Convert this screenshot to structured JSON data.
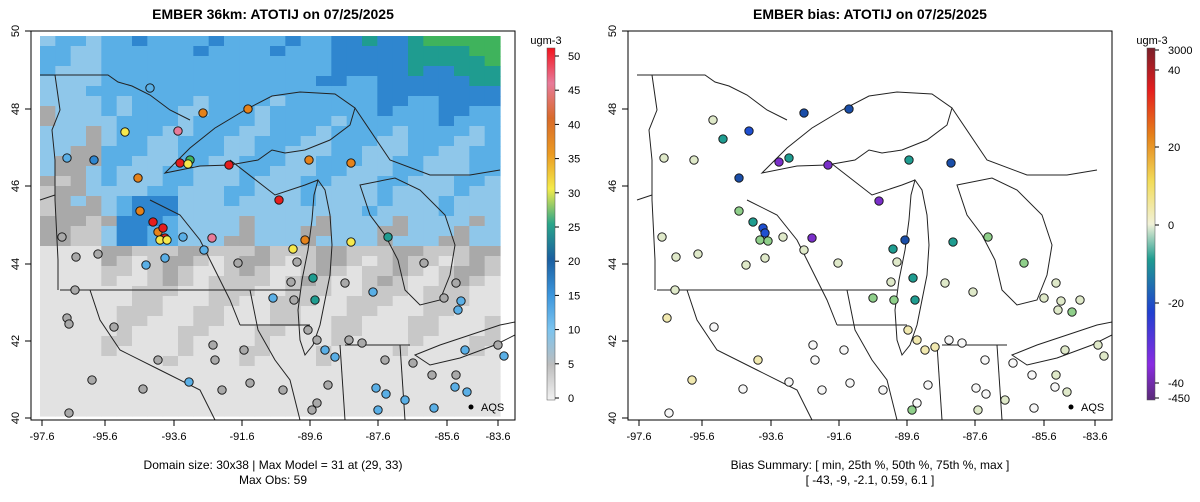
{
  "colors": {
    "gray_dark": "#a9a9a9",
    "gray_mid": "#c8c8c8",
    "gray_light": "#e2e2e2",
    "blue_light": "#5aafe6",
    "blue_mid": "#2f86cf",
    "blue_dark": "#1864a8",
    "teal": "#1f9c90",
    "green": "#3fb35c",
    "yellow": "#f5e84d",
    "orange": "#e5821a",
    "red": "#e51e1e",
    "purple": "#8a2be2"
  },
  "left_panel": {
    "title": "EMBER 36km: ATOTIJ on 07/25/2025",
    "x_ticks": [
      "-97.6",
      "-95.6",
      "-93.6",
      "-91.6",
      "-89.6",
      "-87.6",
      "-85.6",
      "-83.6"
    ],
    "y_ticks": [
      "40",
      "42",
      "44",
      "46",
      "48",
      "50"
    ],
    "colorbar": {
      "unit": "ugm-3",
      "labels": [
        "0",
        "5",
        "10",
        "15",
        "20",
        "25",
        "30",
        "35",
        "40",
        "45",
        "50"
      ]
    },
    "aqs_label": "AQS",
    "caption_line1": "Domain size: 30x38 | Max Model = 31 at (29, 33)",
    "caption_line2": "Max Obs: 59"
  },
  "right_panel": {
    "title": "EMBER bias: ATOTIJ on 07/25/2025",
    "x_ticks": [
      "-97.6",
      "-95.6",
      "-93.6",
      "-91.6",
      "-89.6",
      "-87.6",
      "-85.6",
      "-83.6"
    ],
    "y_ticks": [
      "40",
      "42",
      "44",
      "46",
      "48",
      "50"
    ],
    "colorbar": {
      "unit": "ugm-3",
      "labels": [
        "3000",
        "40",
        "20",
        "0",
        "-20",
        "-40",
        "-450"
      ]
    },
    "aqs_label": "AQS",
    "caption_line1": "Bias Summary: [ min, 25th %, 50th %, 75th %, max ]",
    "caption_line2": "[ -43,   -9,   -2.1,   0.59,   6.1 ]"
  },
  "map_extent": {
    "lon_min": -98.3,
    "lon_max": -83.1,
    "lat_min": 39.8,
    "lat_max": 50.0
  }
}
